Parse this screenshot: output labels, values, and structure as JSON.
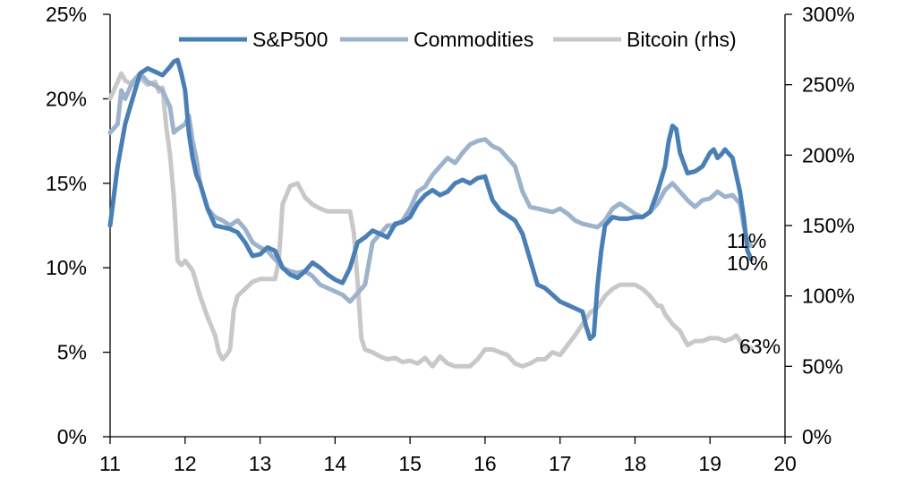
{
  "chart_data": {
    "type": "line",
    "x_ticks": [
      "11",
      "12",
      "13",
      "14",
      "15",
      "16",
      "17",
      "18",
      "19",
      "20"
    ],
    "xlim": [
      11,
      20
    ],
    "y_left": {
      "ticks": [
        "0%",
        "5%",
        "10%",
        "15%",
        "20%",
        "25%"
      ],
      "lim": [
        0,
        25
      ]
    },
    "y_right": {
      "ticks": [
        "0%",
        "50%",
        "100%",
        "150%",
        "200%",
        "250%",
        "300%"
      ],
      "lim": [
        0,
        300
      ]
    },
    "legend_position": "top",
    "series": [
      {
        "name": "S&P500",
        "axis": "left",
        "color": "#4a7fb5",
        "end_label": "10%",
        "x": [
          11.0,
          11.1,
          11.2,
          11.3,
          11.4,
          11.5,
          11.6,
          11.7,
          11.8,
          11.85,
          11.9,
          11.95,
          12.0,
          12.05,
          12.1,
          12.15,
          12.2,
          12.3,
          12.4,
          12.5,
          12.6,
          12.7,
          12.8,
          12.9,
          13.0,
          13.1,
          13.2,
          13.3,
          13.4,
          13.5,
          13.6,
          13.7,
          13.8,
          13.9,
          14.0,
          14.1,
          14.2,
          14.3,
          14.4,
          14.5,
          14.6,
          14.7,
          14.8,
          14.9,
          15.0,
          15.1,
          15.2,
          15.3,
          15.4,
          15.5,
          15.6,
          15.7,
          15.8,
          15.9,
          16.0,
          16.1,
          16.2,
          16.3,
          16.4,
          16.5,
          16.6,
          16.7,
          16.8,
          16.9,
          17.0,
          17.1,
          17.2,
          17.3,
          17.35,
          17.4,
          17.45,
          17.5,
          17.55,
          17.6,
          17.7,
          17.8,
          17.9,
          18.0,
          18.1,
          18.2,
          18.3,
          18.4,
          18.45,
          18.5,
          18.55,
          18.6,
          18.7,
          18.8,
          18.9,
          19.0,
          19.05,
          19.1,
          19.15,
          19.2,
          19.3,
          19.4,
          19.45,
          19.5,
          19.55
        ],
        "y": [
          12.5,
          16.0,
          18.5,
          20.0,
          21.5,
          21.8,
          21.6,
          21.4,
          21.9,
          22.2,
          22.3,
          21.5,
          20.5,
          18.0,
          16.5,
          15.5,
          15.0,
          13.5,
          12.5,
          12.4,
          12.3,
          12.1,
          11.5,
          10.7,
          10.8,
          11.2,
          11.0,
          10.0,
          9.6,
          9.4,
          9.8,
          10.3,
          10.0,
          9.6,
          9.3,
          9.1,
          10.0,
          11.5,
          11.8,
          12.2,
          12.0,
          11.8,
          12.6,
          12.7,
          13.0,
          13.8,
          14.3,
          14.6,
          14.3,
          14.5,
          15.0,
          15.2,
          15.0,
          15.3,
          15.4,
          14.0,
          13.4,
          13.1,
          12.8,
          12.0,
          10.5,
          9.0,
          8.8,
          8.4,
          8.0,
          7.8,
          7.6,
          7.4,
          6.5,
          5.8,
          6.0,
          9.0,
          11.0,
          12.5,
          13.0,
          12.9,
          12.9,
          13.0,
          13.0,
          13.3,
          14.5,
          16.0,
          17.5,
          18.4,
          18.2,
          16.8,
          15.6,
          15.7,
          16.0,
          16.8,
          17.0,
          16.5,
          16.7,
          17.0,
          16.5,
          14.5,
          13.0,
          11.0,
          10.5
        ]
      },
      {
        "name": "Commodities",
        "axis": "left",
        "color": "#9db3cc",
        "end_label": "11%",
        "x": [
          11.0,
          11.1,
          11.15,
          11.2,
          11.3,
          11.4,
          11.5,
          11.6,
          11.7,
          11.8,
          11.85,
          11.9,
          12.0,
          12.05,
          12.1,
          12.15,
          12.2,
          12.3,
          12.4,
          12.5,
          12.6,
          12.7,
          12.8,
          12.9,
          13.0,
          13.1,
          13.2,
          13.3,
          13.4,
          13.5,
          13.6,
          13.7,
          13.8,
          13.9,
          14.0,
          14.1,
          14.2,
          14.3,
          14.4,
          14.5,
          14.6,
          14.7,
          14.8,
          14.9,
          15.0,
          15.1,
          15.2,
          15.3,
          15.4,
          15.5,
          15.6,
          15.7,
          15.8,
          15.9,
          16.0,
          16.1,
          16.2,
          16.3,
          16.4,
          16.5,
          16.6,
          16.7,
          16.8,
          16.9,
          17.0,
          17.1,
          17.2,
          17.3,
          17.4,
          17.5,
          17.6,
          17.7,
          17.8,
          17.9,
          18.0,
          18.1,
          18.2,
          18.3,
          18.4,
          18.5,
          18.6,
          18.7,
          18.8,
          18.9,
          19.0,
          19.1,
          19.2,
          19.3,
          19.4,
          19.45,
          19.5,
          19.55
        ],
        "y": [
          18.0,
          18.5,
          20.5,
          20.0,
          21.0,
          21.5,
          21.0,
          20.8,
          20.5,
          19.5,
          18.0,
          18.2,
          18.5,
          19.0,
          17.5,
          16.5,
          15.0,
          13.5,
          13.0,
          12.8,
          12.5,
          12.8,
          12.3,
          11.5,
          11.2,
          11.0,
          10.5,
          10.0,
          9.8,
          9.7,
          9.8,
          9.5,
          9.0,
          8.8,
          8.6,
          8.4,
          8.0,
          8.5,
          9.0,
          11.5,
          12.0,
          12.5,
          12.5,
          12.8,
          13.5,
          14.5,
          14.8,
          15.5,
          16.0,
          16.5,
          16.2,
          16.8,
          17.3,
          17.5,
          17.6,
          17.2,
          17.0,
          16.5,
          16.0,
          14.5,
          13.6,
          13.5,
          13.4,
          13.3,
          13.5,
          13.2,
          12.8,
          12.6,
          12.5,
          12.4,
          12.8,
          13.5,
          13.8,
          13.5,
          13.2,
          13.0,
          13.3,
          13.8,
          14.6,
          15.0,
          14.5,
          14.0,
          13.6,
          14.0,
          14.1,
          14.5,
          14.2,
          14.3,
          13.8,
          12.5,
          11.5,
          11.3
        ]
      },
      {
        "name": "Bitcoin (rhs)",
        "axis": "right",
        "color": "#c8c8c8",
        "end_label": "63%",
        "x": [
          11.0,
          11.1,
          11.15,
          11.2,
          11.3,
          11.4,
          11.5,
          11.6,
          11.65,
          11.7,
          11.75,
          11.8,
          11.85,
          11.9,
          11.95,
          12.0,
          12.1,
          12.2,
          12.3,
          12.4,
          12.45,
          12.5,
          12.55,
          12.6,
          12.65,
          12.7,
          12.8,
          12.9,
          13.0,
          13.1,
          13.2,
          13.25,
          13.3,
          13.4,
          13.5,
          13.6,
          13.7,
          13.8,
          13.9,
          14.0,
          14.1,
          14.2,
          14.25,
          14.3,
          14.35,
          14.4,
          14.5,
          14.6,
          14.7,
          14.8,
          14.9,
          15.0,
          15.1,
          15.2,
          15.3,
          15.4,
          15.5,
          15.6,
          15.7,
          15.8,
          15.9,
          16.0,
          16.1,
          16.2,
          16.3,
          16.4,
          16.5,
          16.6,
          16.7,
          16.8,
          16.9,
          17.0,
          17.1,
          17.2,
          17.3,
          17.4,
          17.5,
          17.6,
          17.7,
          17.8,
          17.9,
          18.0,
          18.1,
          18.2,
          18.3,
          18.35,
          18.4,
          18.5,
          18.6,
          18.7,
          18.8,
          18.9,
          19.0,
          19.1,
          19.2,
          19.3,
          19.35,
          19.4,
          19.45,
          19.5,
          19.55
        ],
        "y": [
          240,
          252,
          258,
          253,
          250,
          255,
          250,
          252,
          245,
          248,
          220,
          200,
          170,
          125,
          122,
          125,
          118,
          100,
          85,
          72,
          60,
          55,
          58,
          62,
          90,
          100,
          105,
          110,
          112,
          112,
          112,
          125,
          165,
          178,
          180,
          170,
          165,
          162,
          160,
          160,
          160,
          160,
          145,
          110,
          70,
          62,
          60,
          57,
          55,
          56,
          53,
          54,
          52,
          56,
          50,
          57,
          52,
          50,
          50,
          50,
          55,
          62,
          62,
          60,
          58,
          52,
          50,
          52,
          55,
          55,
          60,
          58,
          65,
          72,
          80,
          88,
          92,
          100,
          105,
          108,
          108,
          108,
          105,
          100,
          93,
          93,
          87,
          80,
          75,
          65,
          68,
          68,
          70,
          70,
          68,
          70,
          72,
          68,
          63,
          63,
          63
        ]
      }
    ]
  }
}
